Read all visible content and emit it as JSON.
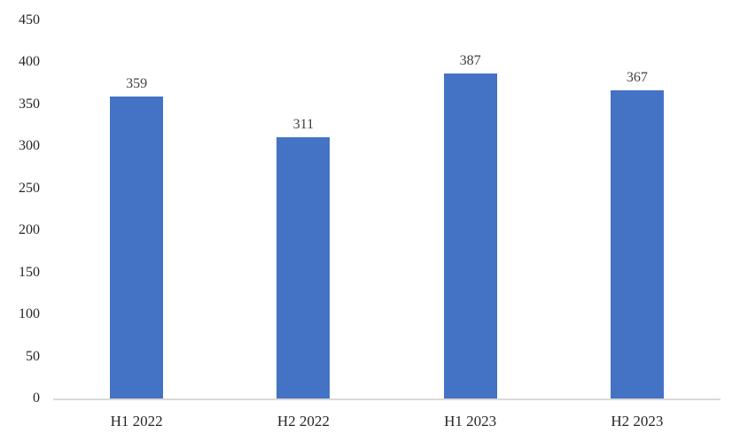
{
  "chart_data": {
    "type": "bar",
    "categories": [
      "H1 2022",
      "H2 2022",
      "H1 2023",
      "H2 2023"
    ],
    "values": [
      359,
      311,
      387,
      367
    ],
    "title": "",
    "xlabel": "",
    "ylabel": "",
    "ylim": [
      0,
      450
    ],
    "y_ticks": [
      0,
      50,
      100,
      150,
      200,
      250,
      300,
      350,
      400,
      450
    ],
    "grid": false,
    "legend": false,
    "data_labels_shown": true,
    "colors": {
      "bar": "#4472c4",
      "axis_line": "#d9d9d9",
      "tick_label": "#262626",
      "value_label": "#404040",
      "background": "#ffffff"
    }
  }
}
